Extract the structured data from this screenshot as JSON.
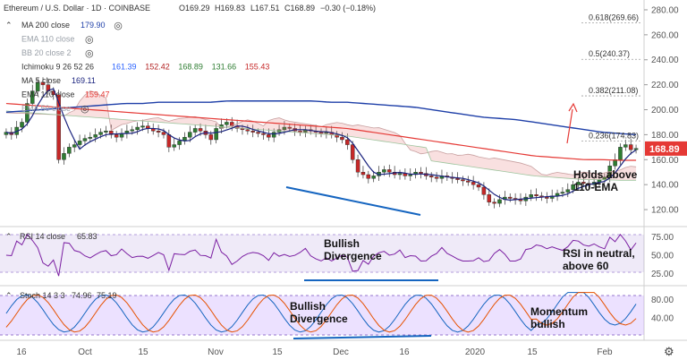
{
  "header": {
    "title": "Ethereum / U.S. Dollar · 1D · COINBASE",
    "ohlc": {
      "o": "O169.29",
      "h": "H169.83",
      "l": "L167.51",
      "c": "C168.89",
      "chg": "−0.30 (−0.18%)"
    }
  },
  "legend": [
    {
      "label": "MA 200 close",
      "value": "179.90",
      "color": "#1e3fa8",
      "icon": "eye-hidden-icon",
      "muted": false
    },
    {
      "label": "EMA 110 close",
      "value": "",
      "color": "#9aa0a8",
      "icon": "eye-hidden-icon",
      "muted": true
    },
    {
      "label": "BB 20 close 2",
      "value": "",
      "color": "#9aa0a8",
      "icon": "eye-hidden-icon",
      "muted": true
    },
    {
      "label": "Ichimoku 9 26 52 26",
      "values": [
        "161.39",
        "152.42",
        "168.89",
        "131.66",
        "155.43"
      ],
      "colors": [
        "#2962ff",
        "#b22222",
        "#2e7d32",
        "#2e7d32",
        "#c62828"
      ],
      "muted": false
    },
    {
      "label": "MA 5 close",
      "value": "169.11",
      "color": "#1a237e",
      "muted": false
    },
    {
      "label": "EMA 110 close",
      "value": "159.47",
      "color": "#e53935",
      "muted": false
    },
    {
      "label": "EMA 50 close",
      "value": "",
      "color": "#9aa0a8",
      "icon": "eye-hidden-icon",
      "muted": true
    }
  ],
  "price_axis": {
    "ticks": [
      "280.00",
      "260.00",
      "240.00",
      "220.00",
      "200.00",
      "180.00",
      "160.00",
      "140.00",
      "120.00"
    ],
    "last_price": "168.89",
    "last_price_color": "#e53935"
  },
  "fib_levels": [
    {
      "label": "0.618(269.66)",
      "value": 269.66
    },
    {
      "label": "0.5(240.37)",
      "value": 240.37
    },
    {
      "label": "0.382(211.08)",
      "value": 211.08
    },
    {
      "label": "0.236(174.83)",
      "value": 174.83
    }
  ],
  "annotations": {
    "price": "Holds above\n110-EMA",
    "rsi_div": "Bullish\nDivergence",
    "rsi_note": "RSI in neutral,\nabove 60",
    "stoch_div": "Bullish\nDivergence",
    "stoch_note": "Momentum\nbullish"
  },
  "rsi": {
    "label": "RSI 14 close",
    "value": "65.83",
    "value_color": "#7b1fa2",
    "ticks": [
      "75.00",
      "50.00",
      "25.00"
    ],
    "upper": 70,
    "lower": 30
  },
  "stoch": {
    "label": "Stoch 14 3 3",
    "k": "74.96",
    "d": "75.19",
    "k_color": "#1565c0",
    "d_color": "#e65100",
    "ticks": [
      "80.00",
      "40.00"
    ],
    "upper": 80,
    "lower": 20
  },
  "time_axis": {
    "labels": [
      "16",
      "Oct",
      "15",
      "Nov",
      "15",
      "Dec",
      "16",
      "2020",
      "15",
      "Feb"
    ]
  },
  "chart_data": {
    "type": "candlestick",
    "title": "Ethereum / U.S. Dollar · 1D · COINBASE",
    "ylim": [
      110,
      285
    ],
    "candles_approx_close": [
      182,
      180,
      186,
      190,
      205,
      215,
      222,
      220,
      215,
      212,
      160,
      165,
      170,
      172,
      175,
      177,
      178,
      180,
      182,
      183,
      180,
      178,
      181,
      183,
      184,
      186,
      187,
      185,
      183,
      182,
      180,
      170,
      172,
      175,
      178,
      182,
      185,
      183,
      180,
      176,
      185,
      188,
      190,
      187,
      185,
      184,
      183,
      182,
      181,
      180,
      178,
      182,
      184,
      186,
      185,
      183,
      182,
      184,
      183,
      182,
      181,
      182,
      180,
      178,
      176,
      172,
      160,
      150,
      148,
      145,
      147,
      150,
      152,
      150,
      148,
      149,
      147,
      148,
      150,
      149,
      147,
      146,
      145,
      147,
      146,
      145,
      144,
      143,
      142,
      140,
      138,
      132,
      126,
      125,
      128,
      130,
      129,
      128,
      127,
      130,
      132,
      131,
      130,
      129,
      131,
      133,
      134,
      136,
      140,
      142,
      141,
      140,
      142,
      144,
      146,
      155,
      160,
      170,
      172,
      168,
      169
    ],
    "ma200_approx": [
      198,
      199,
      200,
      201,
      202,
      203,
      204,
      205,
      205,
      206,
      206,
      206,
      206,
      207,
      207,
      207,
      207,
      207,
      207,
      206,
      206,
      205,
      204,
      203,
      202,
      200,
      198,
      196,
      194,
      193,
      192,
      190,
      188,
      186,
      184,
      182,
      181,
      180
    ],
    "ema110_approx": [
      205,
      204,
      203,
      202,
      201,
      200,
      199,
      198,
      197,
      196,
      195,
      194,
      193,
      192,
      191,
      190,
      189,
      188,
      187,
      186,
      185,
      183,
      181,
      179,
      177,
      175,
      173,
      171,
      169,
      167,
      165,
      163,
      162,
      161,
      160,
      160,
      159.5,
      159.47
    ],
    "rsi_ylim": [
      15,
      85
    ],
    "stoch_ylim": [
      0,
      100
    ],
    "x_labels": [
      "16",
      "Oct",
      "15",
      "Nov",
      "15",
      "Dec",
      "16",
      "2020",
      "15",
      "Feb"
    ]
  }
}
